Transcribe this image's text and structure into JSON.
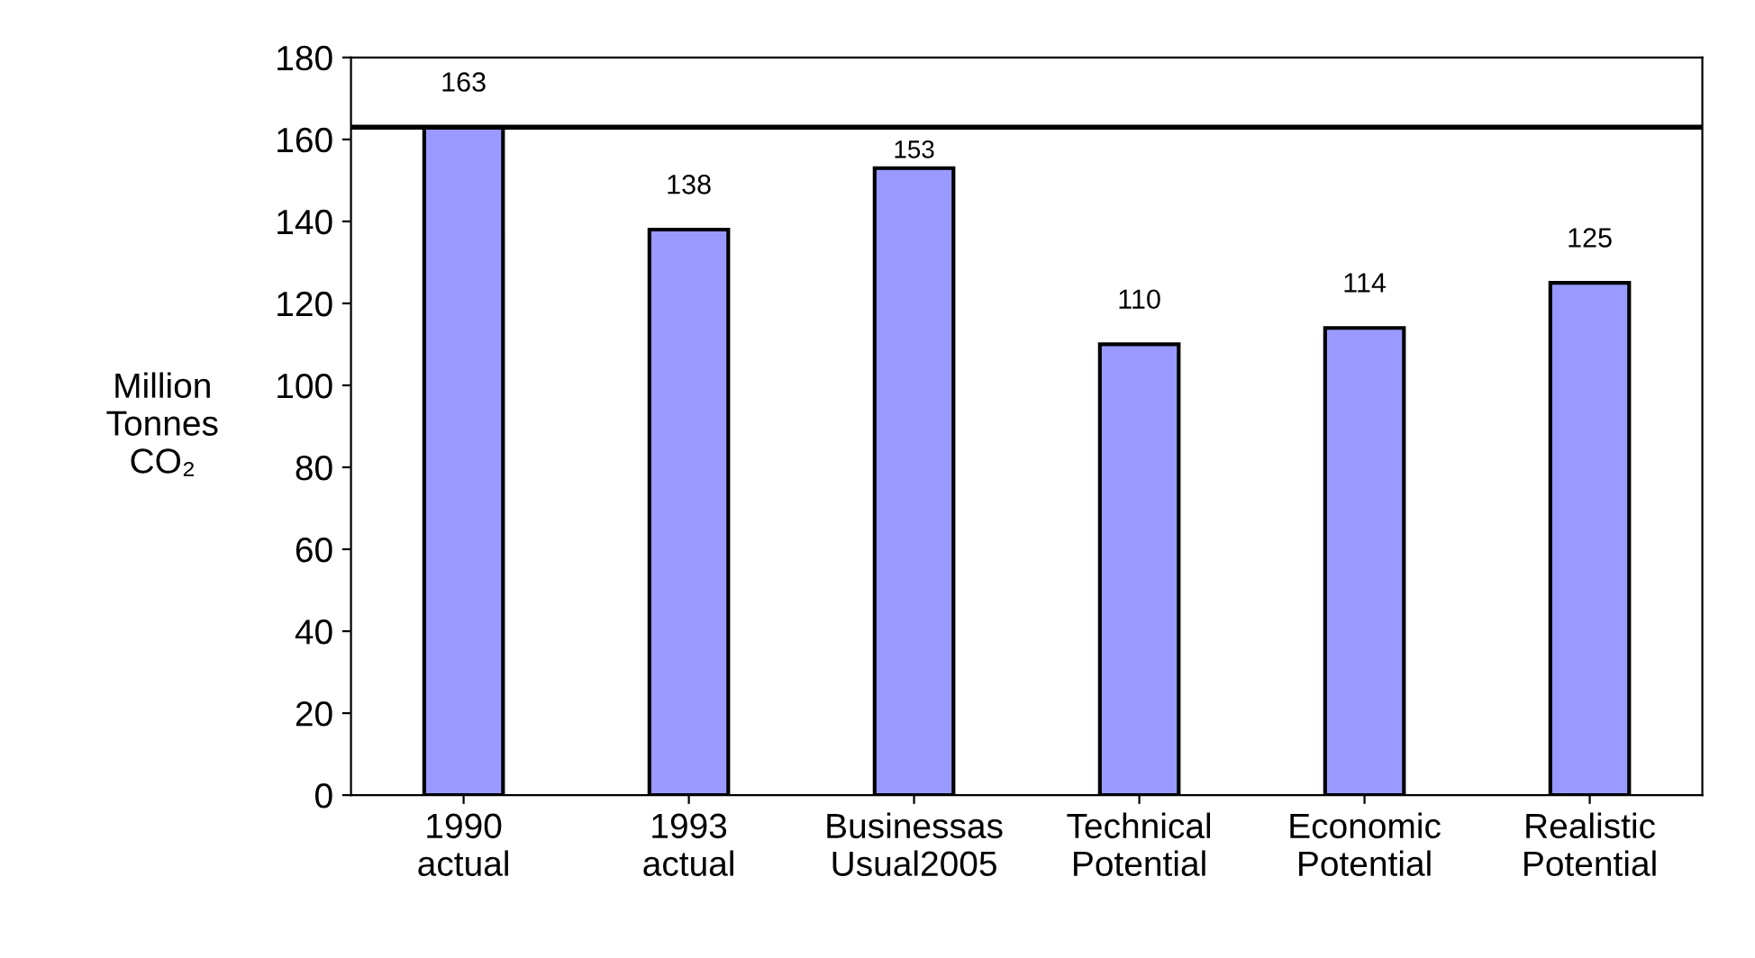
{
  "chart_data": {
    "type": "bar",
    "ylabel": "Million\nTonnes\nCO₂",
    "categories": [
      "1990\nactual",
      "1993\nactual",
      "Businessas\nUsual2005",
      "Technical\nPotential",
      "Economic\nPotential",
      "Realistic\nPotential"
    ],
    "values": [
      163,
      138,
      153,
      110,
      114,
      125
    ],
    "color": "#9999ff",
    "ylim": [
      0,
      180
    ],
    "yticks": [
      0,
      20,
      40,
      60,
      80,
      100,
      120,
      140,
      160,
      180
    ],
    "ref_lines": [
      {
        "axis": "y",
        "value": 163,
        "color": "#000000"
      }
    ],
    "data_labels": true,
    "grid": false,
    "legend": false
  }
}
